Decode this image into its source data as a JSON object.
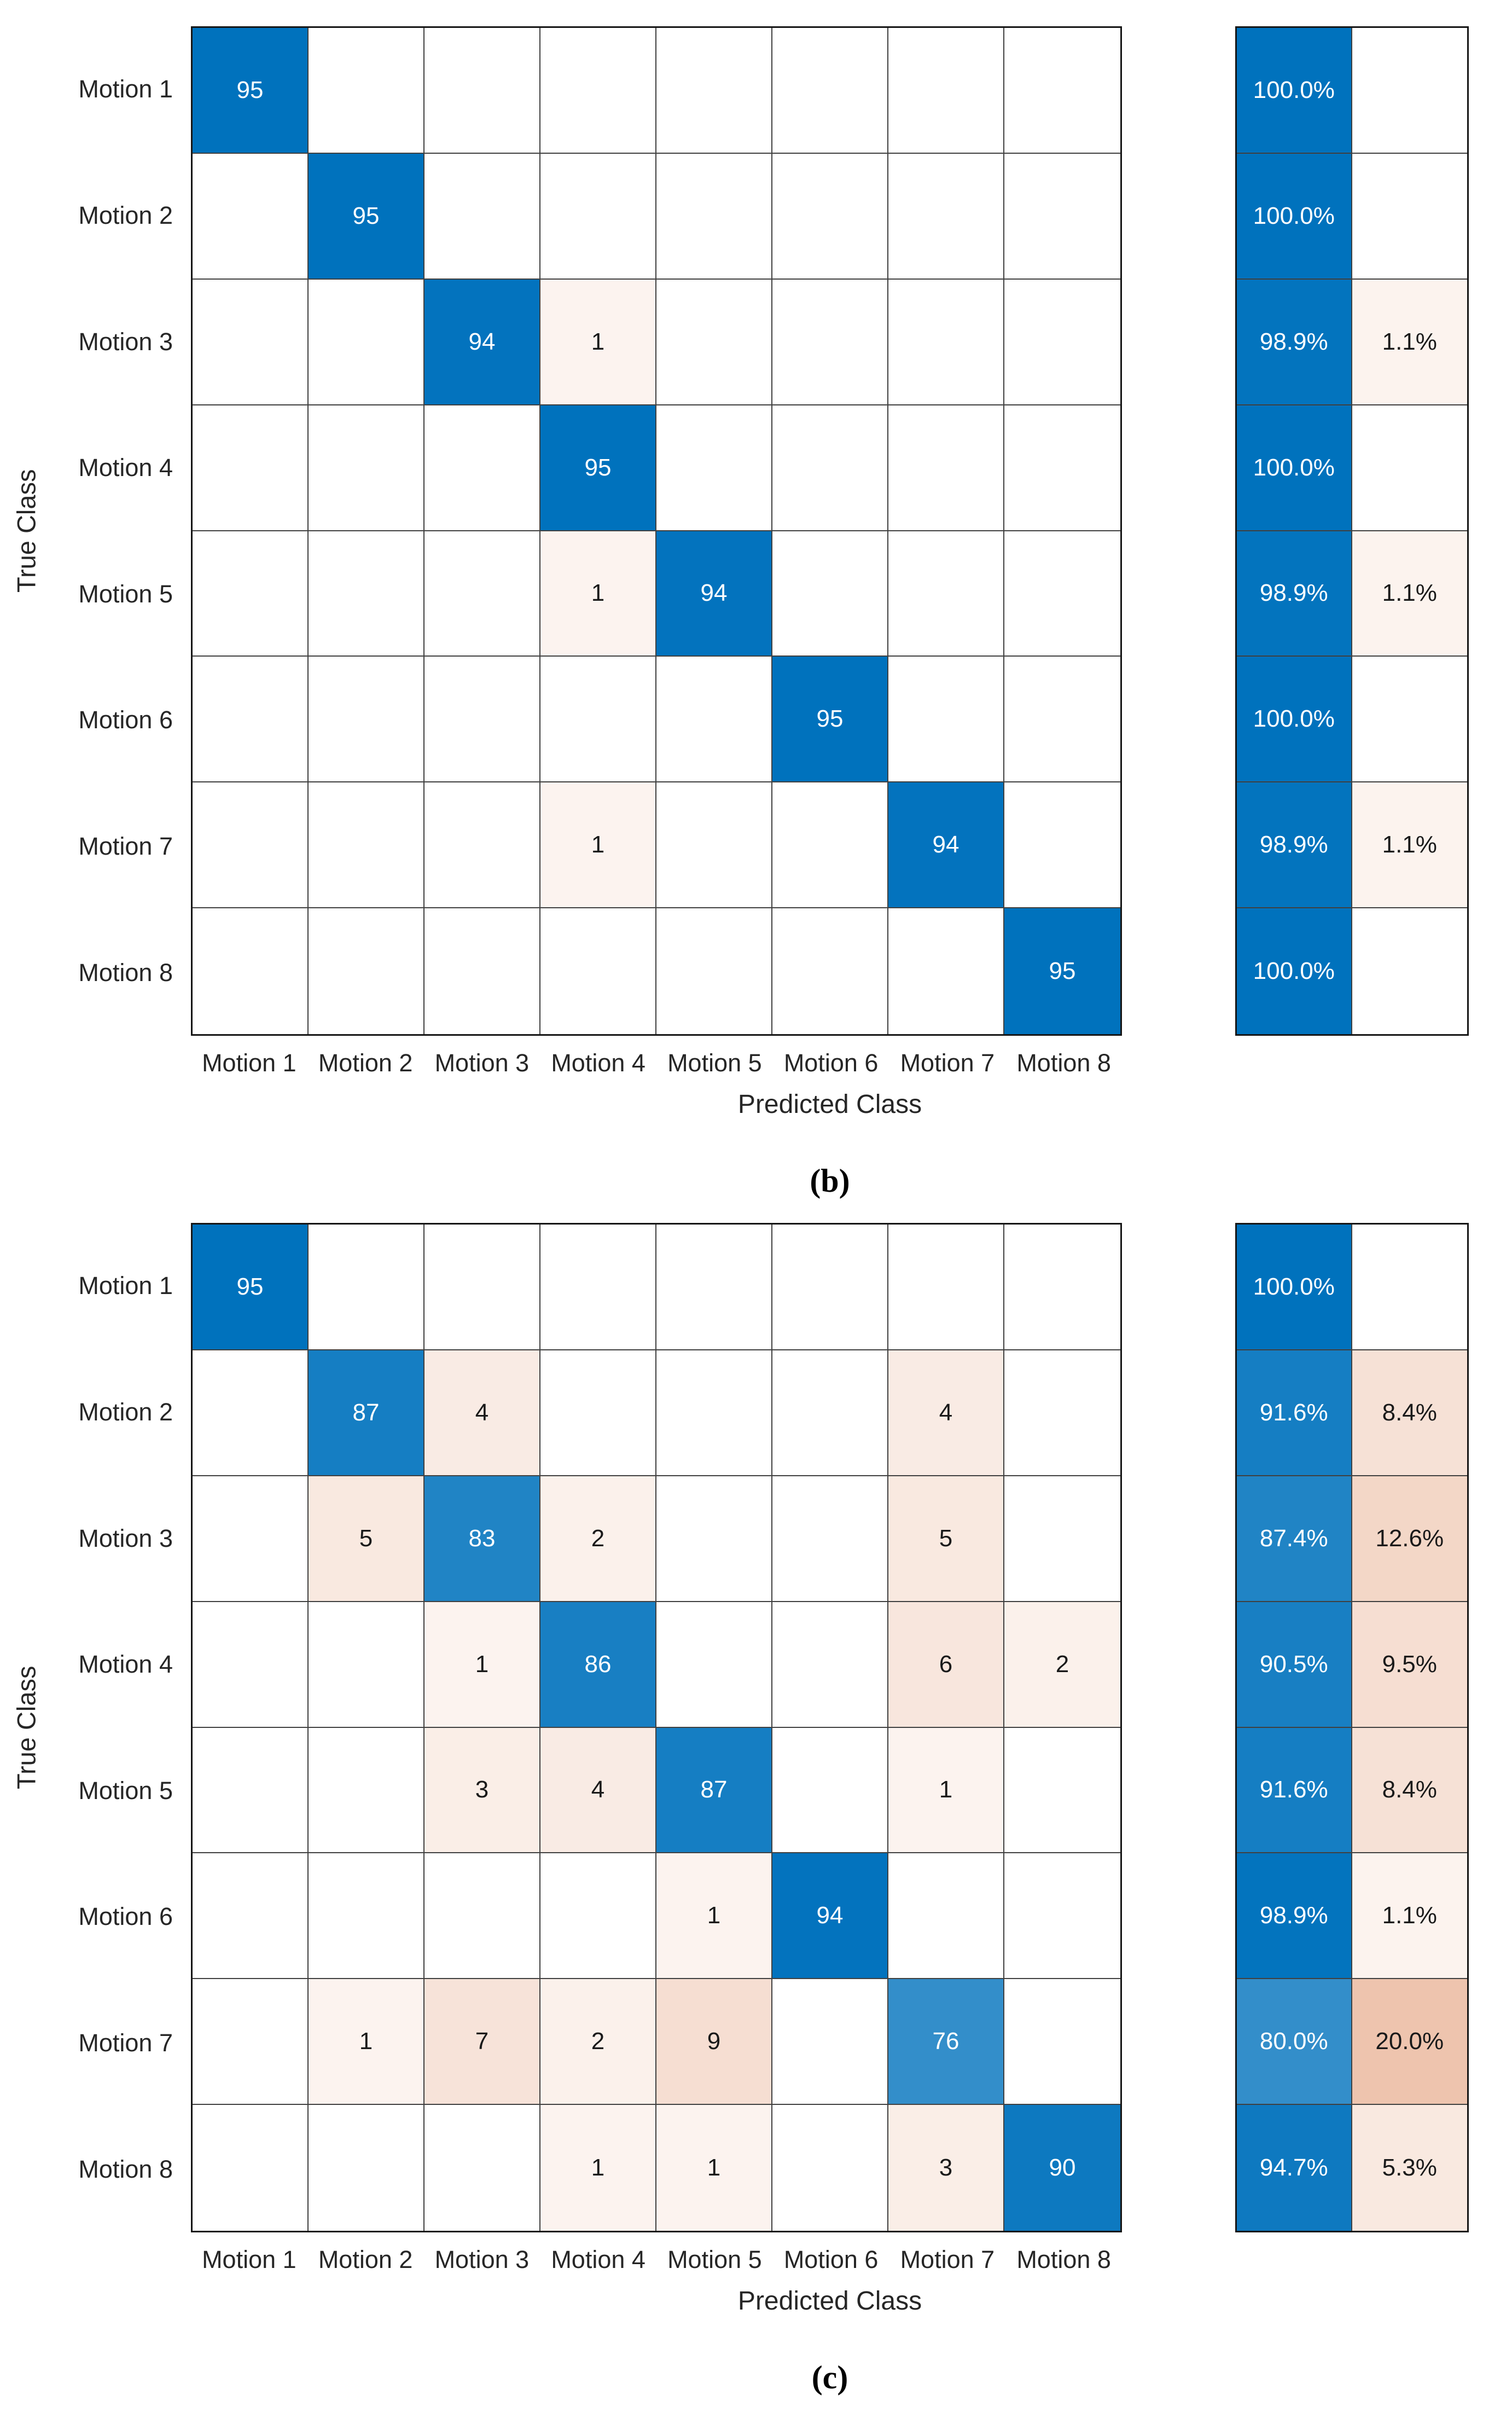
{
  "colors": {
    "diagonal_blue": "#0072BD",
    "offdiagonal_salmon": "#D46930",
    "grid_line": "#404040",
    "outer_border": "#161616",
    "cell_text_light": "#ffffff",
    "cell_text_dark": "#1a1a1a"
  },
  "chart_data": [
    {
      "type": "heatmap",
      "subtype": "confusion-matrix-with-row-summary",
      "caption": "(b)",
      "xlabel": "Predicted Class",
      "ylabel": "True Class",
      "classes": [
        "Motion 1",
        "Motion 2",
        "Motion 3",
        "Motion 4",
        "Motion 5",
        "Motion 6",
        "Motion 7",
        "Motion 8"
      ],
      "matrix": [
        [
          95,
          0,
          0,
          0,
          0,
          0,
          0,
          0
        ],
        [
          0,
          95,
          0,
          0,
          0,
          0,
          0,
          0
        ],
        [
          0,
          0,
          94,
          1,
          0,
          0,
          0,
          0
        ],
        [
          0,
          0,
          0,
          95,
          0,
          0,
          0,
          0
        ],
        [
          0,
          0,
          0,
          1,
          94,
          0,
          0,
          0
        ],
        [
          0,
          0,
          0,
          0,
          0,
          95,
          0,
          0
        ],
        [
          0,
          0,
          0,
          1,
          0,
          0,
          94,
          0
        ],
        [
          0,
          0,
          0,
          0,
          0,
          0,
          0,
          95
        ]
      ],
      "row_summary": {
        "correct_pct": [
          "100.0%",
          "100.0%",
          "98.9%",
          "100.0%",
          "98.9%",
          "100.0%",
          "98.9%",
          "100.0%"
        ],
        "incorrect_pct": [
          "",
          "",
          "1.1%",
          "",
          "1.1%",
          "",
          "1.1%",
          ""
        ]
      }
    },
    {
      "type": "heatmap",
      "subtype": "confusion-matrix-with-row-summary",
      "caption": "(c)",
      "xlabel": "Predicted Class",
      "ylabel": "True Class",
      "classes": [
        "Motion 1",
        "Motion 2",
        "Motion 3",
        "Motion 4",
        "Motion 5",
        "Motion 6",
        "Motion 7",
        "Motion 8"
      ],
      "matrix": [
        [
          95,
          0,
          0,
          0,
          0,
          0,
          0,
          0
        ],
        [
          0,
          87,
          4,
          0,
          0,
          0,
          4,
          0
        ],
        [
          0,
          5,
          83,
          2,
          0,
          0,
          5,
          0
        ],
        [
          0,
          0,
          1,
          86,
          0,
          0,
          6,
          2
        ],
        [
          0,
          0,
          3,
          4,
          87,
          0,
          1,
          0
        ],
        [
          0,
          0,
          0,
          0,
          1,
          94,
          0,
          0
        ],
        [
          0,
          1,
          7,
          2,
          9,
          0,
          76,
          0
        ],
        [
          0,
          0,
          0,
          1,
          1,
          0,
          3,
          90
        ]
      ],
      "row_summary": {
        "correct_pct": [
          "100.0%",
          "91.6%",
          "87.4%",
          "90.5%",
          "91.6%",
          "98.9%",
          "80.0%",
          "94.7%"
        ],
        "incorrect_pct": [
          "",
          "8.4%",
          "12.6%",
          "9.5%",
          "8.4%",
          "1.1%",
          "20.0%",
          "5.3%"
        ]
      }
    }
  ]
}
